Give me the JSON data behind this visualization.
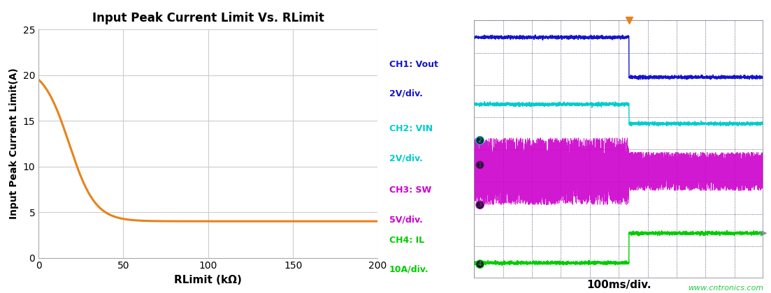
{
  "left_title": "Input Peak Current Limit Vs. RLimit",
  "left_xlabel": "RLimit (kΩ)",
  "left_ylabel": "Input Peak Current Limit(A)",
  "left_xlim": [
    0,
    200
  ],
  "left_ylim": [
    0,
    25
  ],
  "left_xticks": [
    0,
    50,
    100,
    150,
    200
  ],
  "left_yticks": [
    0,
    5,
    10,
    15,
    20,
    25
  ],
  "curve_color": "#E8821A",
  "curve_peak": 21.0,
  "curve_floor": 4.0,
  "curve_inflect": 18,
  "curve_steep": 0.13,
  "bg_color": "#ffffff",
  "grid_color": "#cccccc",
  "ch1_color": "#1515cc",
  "ch2_color": "#00cccc",
  "ch3_color": "#cc00cc",
  "ch4_color": "#00cc00",
  "ch1_label_line1": "CH1: Vout",
  "ch1_label_line2": "2V/div.",
  "ch2_label_line1": "CH2: VIN",
  "ch2_label_line2": "2V/div.",
  "ch3_label_line1": "CH3: SW",
  "ch3_label_line2": "5V/div.",
  "ch4_label_line1": "CH4: IL",
  "ch4_label_line2": "10A/div.",
  "time_label": "100ms/div.",
  "watermark": "www.cntronics.com",
  "osc_bg": "#1a1a2a",
  "osc_grid_color": "#3a3a5a",
  "osc_transition": 0.535,
  "marker_color": "#E8821A"
}
